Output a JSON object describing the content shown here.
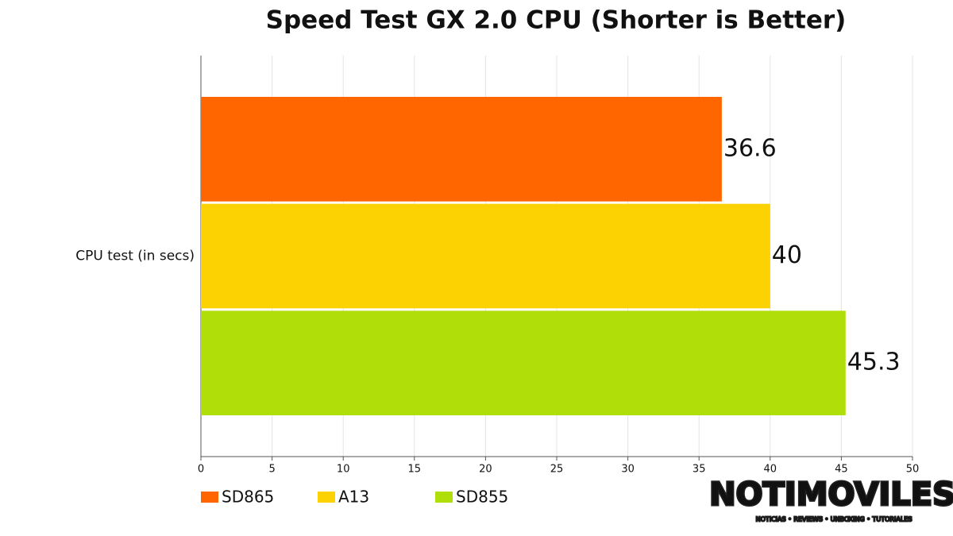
{
  "chart_data": {
    "type": "bar",
    "orientation": "horizontal",
    "title": "Speed Test GX 2.0 CPU (Shorter is Better)",
    "categories": [
      "CPU test (in secs)"
    ],
    "series": [
      {
        "name": "SD865",
        "color": "#ff6600",
        "values": [
          36.6
        ]
      },
      {
        "name": "A13",
        "color": "#fcd202",
        "values": [
          40
        ]
      },
      {
        "name": "SD855",
        "color": "#b0de09",
        "values": [
          45.3
        ]
      }
    ],
    "xlim": [
      0,
      50
    ],
    "xticks": [
      0,
      5,
      10,
      15,
      20,
      25,
      30,
      35,
      40,
      45,
      50
    ],
    "grid": true,
    "legend": "bottom",
    "watermark": "NOTIMOVILES",
    "watermark_tagline": "NOTICIAS • REVIEWS • UNBOXING • TUTORIALES"
  }
}
